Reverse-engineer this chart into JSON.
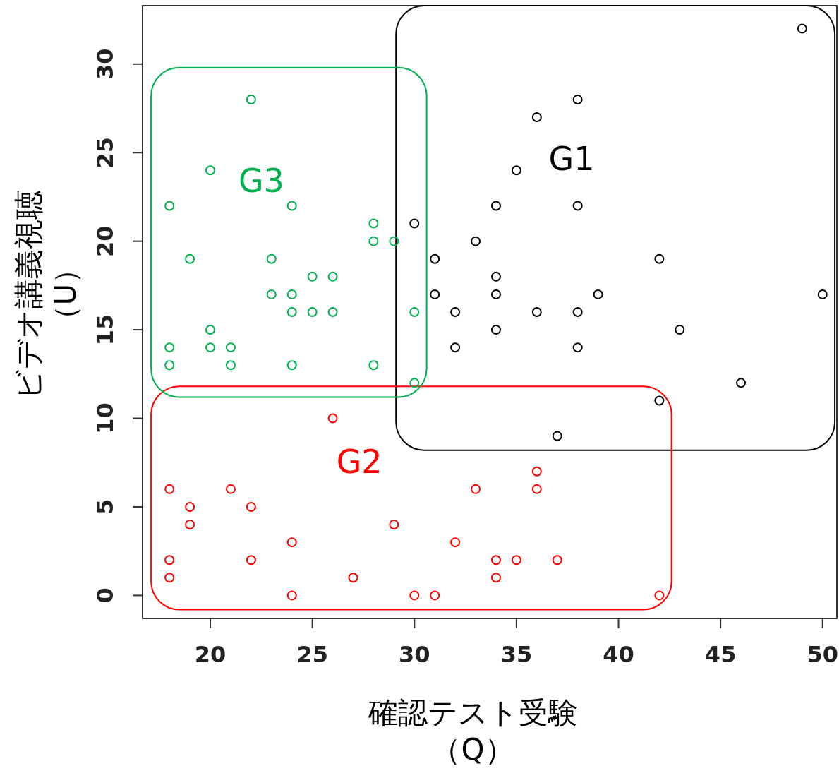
{
  "chart_data": {
    "type": "scatter",
    "xlabel": "確認テスト受験（Q）",
    "ylabel": "ビデオ講義視聴（U）",
    "xlim": [
      16.68,
      50.7
    ],
    "ylim": [
      -1.3,
      33.3
    ],
    "xticks": [
      20,
      25,
      30,
      35,
      40,
      45,
      50
    ],
    "yticks": [
      0,
      5,
      10,
      15,
      20,
      25,
      30
    ],
    "marker": "circle",
    "series": [
      {
        "name": "G1",
        "color": "#000000",
        "x": [
          49,
          38,
          36,
          35,
          34,
          38,
          30,
          33,
          31,
          42,
          34,
          31,
          34,
          39,
          50,
          32,
          36,
          38,
          34,
          43,
          32,
          38,
          46,
          42,
          37
        ],
        "values": [
          32,
          28,
          27,
          24,
          22,
          22,
          21,
          20,
          19,
          19,
          18,
          17,
          17,
          17,
          17,
          16,
          16,
          16,
          15,
          15,
          14,
          14,
          12,
          11,
          9
        ]
      },
      {
        "name": "G2",
        "color": "#ff0000",
        "x": [
          26,
          36,
          18,
          21,
          33,
          36,
          19,
          22,
          19,
          29,
          24,
          32,
          18,
          22,
          34,
          35,
          37,
          18,
          27,
          34,
          24,
          30,
          31,
          42
        ],
        "values": [
          10,
          7,
          6,
          6,
          6,
          6,
          5,
          5,
          4,
          4,
          3,
          3,
          2,
          2,
          2,
          2,
          2,
          1,
          1,
          1,
          0,
          0,
          0,
          0
        ]
      },
      {
        "name": "G3",
        "color": "#00b050",
        "x": [
          22,
          20,
          18,
          24,
          28,
          28,
          29,
          19,
          23,
          25,
          26,
          23,
          24,
          24,
          25,
          26,
          30,
          20,
          18,
          20,
          21,
          18,
          21,
          24,
          28,
          30
        ],
        "values": [
          28,
          24,
          22,
          22,
          21,
          20,
          20,
          19,
          19,
          18,
          18,
          17,
          17,
          16,
          16,
          16,
          16,
          15,
          14,
          14,
          14,
          13,
          13,
          13,
          13,
          12
        ]
      }
    ]
  }
}
